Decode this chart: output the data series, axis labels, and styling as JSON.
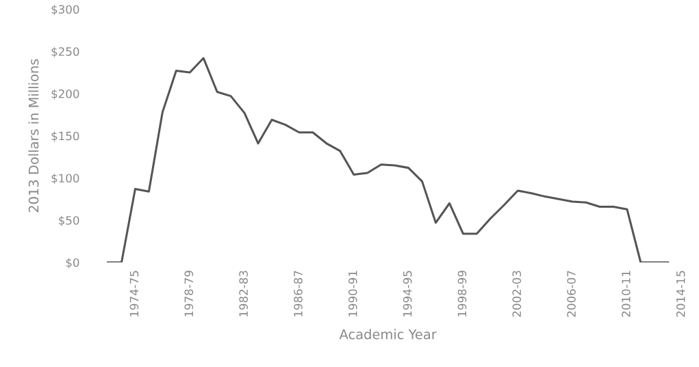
{
  "chart_data": {
    "type": "line",
    "xlabel": "Academic Year",
    "ylabel": "2013 Dollars in Millions",
    "categories": [
      null,
      null,
      "1974-75",
      null,
      null,
      null,
      "1978-79",
      null,
      null,
      null,
      "1982-83",
      null,
      null,
      null,
      "1986-87",
      null,
      null,
      null,
      "1990-91",
      null,
      null,
      null,
      "1994-95",
      null,
      null,
      null,
      "1998-99",
      null,
      null,
      null,
      "2002-03",
      null,
      null,
      null,
      "2006-07",
      null,
      null,
      null,
      "2010-11",
      null,
      null,
      null,
      "2014-15"
    ],
    "series": [
      {
        "color": "#555555",
        "values": [
          0,
          0,
          87,
          84,
          178,
          227,
          225,
          242,
          202,
          197,
          177,
          141,
          169,
          163,
          154,
          154,
          141,
          132,
          104,
          106,
          116,
          115,
          112,
          96,
          47,
          70,
          34,
          34,
          52,
          68,
          85,
          82,
          78,
          75,
          72,
          71,
          66,
          66,
          63,
          0,
          0,
          0,
          null
        ]
      }
    ],
    "ylim": [
      0,
      300
    ],
    "yticks": [
      {
        "value": 0,
        "label": "$0"
      },
      {
        "value": 50,
        "label": "$50"
      },
      {
        "value": 100,
        "label": "$100"
      },
      {
        "value": 150,
        "label": "$150"
      },
      {
        "value": 200,
        "label": "$200"
      },
      {
        "value": 250,
        "label": "$250"
      },
      {
        "value": 300,
        "label": "$300"
      }
    ],
    "marker": "none",
    "line_style": "solid"
  }
}
